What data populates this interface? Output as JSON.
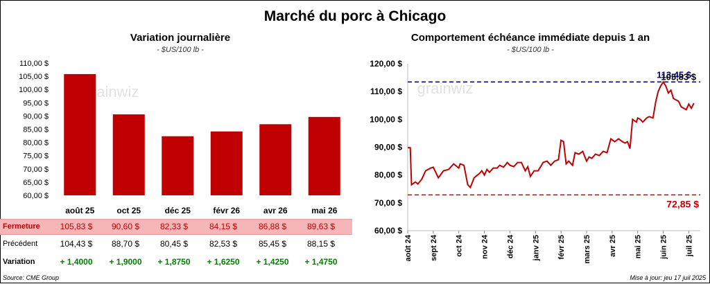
{
  "title": "Marché du porc à Chicago",
  "left_chart": {
    "title": "Variation journalière",
    "subtitle": "- $US/100 lb -"
  },
  "right_chart": {
    "title": "Comportement échéance immédiate depuis 1 an",
    "subtitle": "- $US/100 lb -"
  },
  "watermark": "grainwiz",
  "table": {
    "rows": [
      {
        "label": "Fermeture",
        "values": [
          "105,83 $",
          "90,60 $",
          "82,33 $",
          "84,15 $",
          "86,88 $",
          "89,63 $"
        ]
      },
      {
        "label": "Précédent",
        "values": [
          "104,43 $",
          "88,70 $",
          "80,45 $",
          "82,53 $",
          "85,45 $",
          "88,15 $"
        ]
      },
      {
        "label": "Variation",
        "values": [
          "+ 1,4000",
          "+ 1,9000",
          "+ 1,8750",
          "+ 1,6250",
          "+ 1,4250",
          "+ 1,4750"
        ]
      }
    ]
  },
  "source": "Source: CME Group",
  "updated": "Mise à jour: jeu 17 juil 2025",
  "colors": {
    "bar": "#c00000",
    "line": "#c00000",
    "max_line": "#000080",
    "min_line": "#c00000",
    "variation": "#008000",
    "highlight_row": "#f4b6b6"
  },
  "chart_data": [
    {
      "type": "bar",
      "categories": [
        "août 25",
        "oct 25",
        "déc 25",
        "févr 26",
        "avr 26",
        "mai 26"
      ],
      "values": [
        105.83,
        90.6,
        82.33,
        84.15,
        86.88,
        89.63
      ],
      "ylim": [
        60,
        110
      ],
      "yticks": [
        "60,00 $",
        "65,00 $",
        "70,00 $",
        "75,00 $",
        "80,00 $",
        "85,00 $",
        "90,00 $",
        "95,00 $",
        "100,00 $",
        "105,00 $",
        "110,00 $"
      ],
      "grid": false
    },
    {
      "type": "line",
      "ylim": [
        60,
        120
      ],
      "yticks": [
        "60,00 $",
        "70,00 $",
        "80,00 $",
        "90,00 $",
        "100,00 $",
        "110,00 $",
        "120,00 $"
      ],
      "xticks": [
        "août 24",
        "sept 24",
        "oct 24",
        "nov 24",
        "déc 24",
        "janv 25",
        "févr 25",
        "mars 25",
        "avr 25",
        "mai 25",
        "juin 25",
        "juil 25"
      ],
      "x": [
        0,
        0.1,
        0.15,
        0.3,
        0.4,
        0.55,
        0.7,
        0.9,
        1.0,
        1.2,
        1.4,
        1.6,
        1.8,
        2.0,
        2.05,
        2.2,
        2.35,
        2.45,
        2.6,
        2.8,
        2.9,
        3.0,
        3.1,
        3.2,
        3.35,
        3.5,
        3.6,
        3.75,
        3.9,
        4.0,
        4.15,
        4.3,
        4.45,
        4.6,
        4.7,
        4.8,
        4.95,
        5.1,
        5.2,
        5.3,
        5.45,
        5.6,
        5.75,
        5.9,
        6.0,
        6.1,
        6.2,
        6.3,
        6.45,
        6.55,
        6.7,
        6.85,
        7.0,
        7.1,
        7.2,
        7.35,
        7.5,
        7.65,
        7.8,
        7.95,
        8.1,
        8.25,
        8.4,
        8.5,
        8.6,
        8.7,
        8.8,
        8.95,
        9.0,
        9.1,
        9.2,
        9.35,
        9.45,
        9.6,
        9.7,
        9.8,
        9.9,
        10.0,
        10.1,
        10.2,
        10.3,
        10.4,
        10.5,
        10.6,
        10.7,
        10.8,
        10.9,
        11.0,
        11.1,
        11.2
      ],
      "y": [
        89.8,
        89.8,
        76.5,
        77.5,
        76.8,
        78.5,
        81.5,
        82.5,
        82.8,
        79.0,
        81.5,
        82.0,
        84.0,
        82.5,
        84.0,
        83.5,
        76.5,
        75.5,
        79.0,
        80.5,
        81.5,
        80.0,
        82.0,
        81.0,
        82.5,
        82.5,
        83.5,
        82.8,
        84.5,
        83.5,
        83.0,
        84.5,
        84.5,
        81.5,
        83.0,
        79.5,
        81.5,
        81.5,
        83.0,
        84.5,
        85.0,
        83.5,
        85.0,
        85.5,
        92.5,
        92.0,
        84.0,
        85.0,
        83.5,
        88.0,
        87.5,
        88.5,
        85.0,
        86.5,
        86.0,
        87.5,
        87.0,
        88.5,
        88.0,
        93.0,
        92.0,
        93.0,
        92.0,
        91.5,
        92.0,
        89.5,
        100.0,
        99.0,
        100.5,
        100.0,
        99.0,
        100.5,
        101.0,
        100.5,
        106.0,
        110.0,
        112.0,
        113.45,
        112.0,
        109.5,
        110.5,
        107.5,
        107.0,
        106.5,
        104.5,
        104.0,
        103.5,
        105.5,
        104.0,
        105.83
      ],
      "max": {
        "value": 113.45,
        "label": "113,45 $"
      },
      "min": {
        "value": 72.85,
        "label": "72,85 $"
      },
      "last": {
        "value": 105.83,
        "label": "105,83 $"
      },
      "grid": false
    }
  ]
}
